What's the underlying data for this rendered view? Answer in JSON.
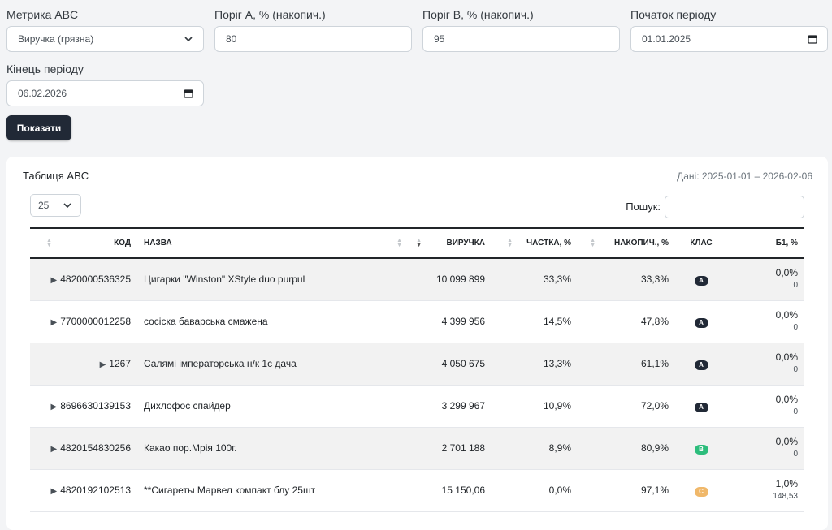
{
  "filters": {
    "metric_label": "Метрика ABC",
    "metric_value": "Виручка (грязна)",
    "threshold_a_label": "Поріг A, % (накопич.)",
    "threshold_a_value": "80",
    "threshold_b_label": "Поріг B, % (накопич.)",
    "threshold_b_value": "95",
    "period_start_label": "Початок періоду",
    "period_start_value": "01.01.2025",
    "period_end_label": "Кінець періоду",
    "period_end_value": "06.02.2026",
    "show_button": "Показати"
  },
  "table_card": {
    "title": "Таблиця ABC",
    "range": "Дані: 2025-01-01 – 2026-02-06",
    "page_size": "25",
    "search_label": "Пошук:",
    "columns": {
      "code": "КОД",
      "name": "НАЗВА",
      "revenue": "ВИРУЧКА",
      "share": "ЧАСТКА, %",
      "cumulative": "НАКОПИЧ., %",
      "class": "КЛАС",
      "b1": "Б1, %"
    },
    "rows": [
      {
        "code": "4820000536325",
        "name": "Цигарки \"Winston\" XStyle duo purpul",
        "revenue": "10 099 899",
        "share": "33,3%",
        "cumulative": "33,3%",
        "class": "A",
        "b1_pct": "0,0%",
        "b1_val": "0"
      },
      {
        "code": "7700000012258",
        "name": "сосіска баварська смажена",
        "revenue": "4 399 956",
        "share": "14,5%",
        "cumulative": "47,8%",
        "class": "A",
        "b1_pct": "0,0%",
        "b1_val": "0"
      },
      {
        "code": "1267",
        "name": "Салямі імператорська н/к 1с дача",
        "revenue": "4 050 675",
        "share": "13,3%",
        "cumulative": "61,1%",
        "class": "A",
        "b1_pct": "0,0%",
        "b1_val": "0"
      },
      {
        "code": "8696630139153",
        "name": "Дихлофос спайдер",
        "revenue": "3 299 967",
        "share": "10,9%",
        "cumulative": "72,0%",
        "class": "A",
        "b1_pct": "0,0%",
        "b1_val": "0"
      },
      {
        "code": "4820154830256",
        "name": "Какао пор.Мрія 100г.",
        "revenue": "2 701 188",
        "share": "8,9%",
        "cumulative": "80,9%",
        "class": "B",
        "b1_pct": "0,0%",
        "b1_val": "0"
      },
      {
        "code": "4820192102513",
        "name": "**Сигареты Марвел компакт блу 25шт",
        "revenue": "15 150,06",
        "share": "0,0%",
        "cumulative": "97,1%",
        "class": "C",
        "b1_pct": "1,0%",
        "b1_val": "148,53"
      }
    ]
  },
  "colors": {
    "class_a": "#212936",
    "class_b": "#2dbd7c",
    "class_c": "#f0b86a",
    "button": "#212936"
  },
  "icons": {
    "dropdown": "chevron-down-icon",
    "date": "calendar-icon",
    "expand": "expand-caret-icon",
    "sort": "sort-icon"
  }
}
